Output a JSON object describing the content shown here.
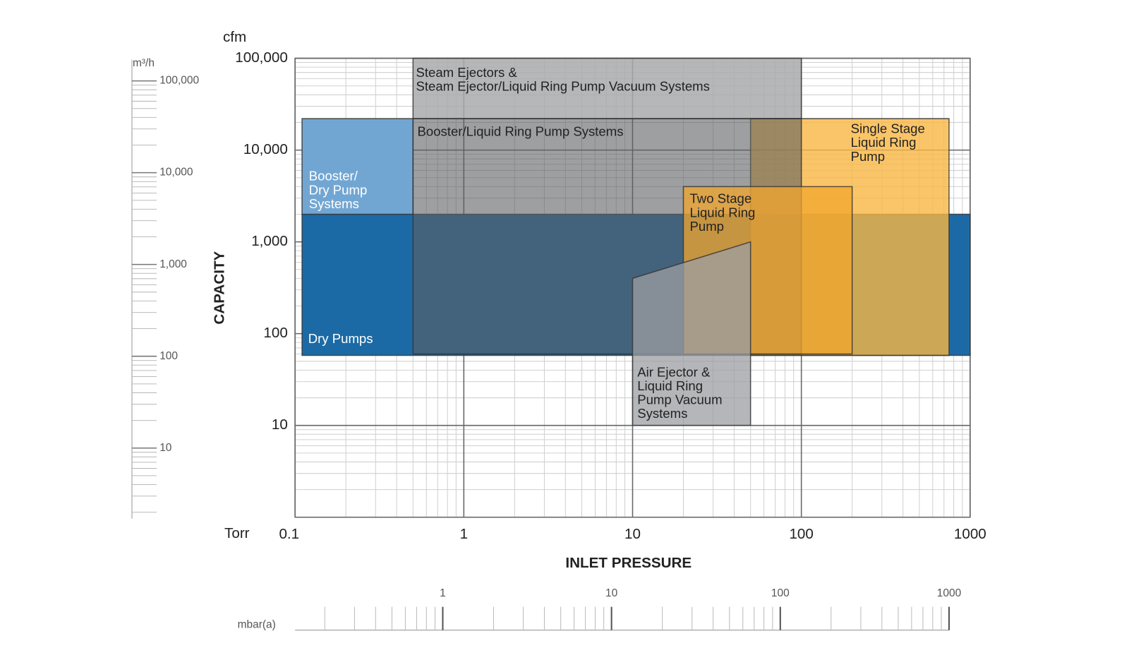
{
  "chart_data": {
    "type": "region",
    "x_label": "INLET PRESSURE",
    "y_label": "CAPACITY",
    "x_unit": "Torr",
    "y_unit": "cfm",
    "xscale": "log",
    "yscale": "log",
    "xlim": [
      0.1,
      1000
    ],
    "xticks": [
      0.1,
      1,
      10,
      100,
      1000
    ],
    "ylim": [
      1,
      100000
    ],
    "yticks": [
      10,
      100,
      {
        "value": 1000,
        "label": "1,000"
      },
      {
        "value": 10000,
        "label": "10,000"
      },
      {
        "value": 100000,
        "label": "100,000"
      }
    ],
    "y2_unit": "m³/h",
    "y2lim": [
      1.7,
      170000
    ],
    "y2ticks": [
      10,
      100,
      {
        "value": 1000,
        "label": "1,000"
      },
      {
        "value": 10000,
        "label": "10,000"
      },
      {
        "value": 100000,
        "label": "100,000"
      }
    ],
    "x2_unit": "mbar(a)",
    "x2lim": [
      0.1333,
      1333
    ],
    "x2ticks": [
      1,
      10,
      100,
      1000
    ],
    "grid": true,
    "regions": [
      {
        "name": [
          "Dry Pumps"
        ],
        "x": [
          0.11,
          1000,
          1000,
          0.11
        ],
        "y": [
          58,
          58,
          2000,
          2000
        ],
        "color": "#1c6aa5",
        "opacity": 1,
        "label_color": "#ffffff"
      },
      {
        "name": [
          "Booster/",
          "Dry Pump",
          "Systems"
        ],
        "x": [
          0.11,
          0.5,
          0.5,
          0.11
        ],
        "y": [
          2000,
          2000,
          22000,
          22000
        ],
        "color": "#72a6d2",
        "opacity": 1,
        "label_color": "#ffffff"
      },
      {
        "name": [
          "Steam Ejectors &",
          "Steam Ejector/Liquid Ring Pump Vacuum Systems"
        ],
        "x": [
          0.5,
          100,
          100,
          0.5
        ],
        "y": [
          22000,
          22000,
          100000,
          100000
        ],
        "color": "#a9aaac",
        "opacity": 0.85,
        "label_color": "#222222"
      },
      {
        "name": [
          "Single Stage",
          "Liquid Ring",
          "Pump"
        ],
        "x": [
          50,
          750,
          750,
          50
        ],
        "y": [
          58,
          58,
          22000,
          22000
        ],
        "color": "#f9b642",
        "opacity": 0.8,
        "label_color": "#222222"
      },
      {
        "name": [
          "Booster/Liquid Ring Pump Systems"
        ],
        "x": [
          0.5,
          100,
          100,
          0.5
        ],
        "y": [
          60,
          60,
          22000,
          22000
        ],
        "color": "#5e5f61",
        "opacity": 0.6,
        "label_color": "#222222"
      },
      {
        "name": [
          "Two Stage",
          "Liquid Ring",
          "Pump"
        ],
        "x": [
          20,
          200,
          200,
          20
        ],
        "y": [
          60,
          60,
          4000,
          4000
        ],
        "color": "#f2a52e",
        "opacity": 0.75,
        "label_color": "#222222"
      },
      {
        "name": [
          "Air Ejector &",
          "Liquid Ring",
          "Pump Vacuum",
          "Systems"
        ],
        "x": [
          10,
          50,
          50,
          10
        ],
        "y": [
          10,
          10,
          1000,
          400
        ],
        "color": "#9c9ea1",
        "opacity": 0.75,
        "label_color": "#222222"
      }
    ]
  }
}
